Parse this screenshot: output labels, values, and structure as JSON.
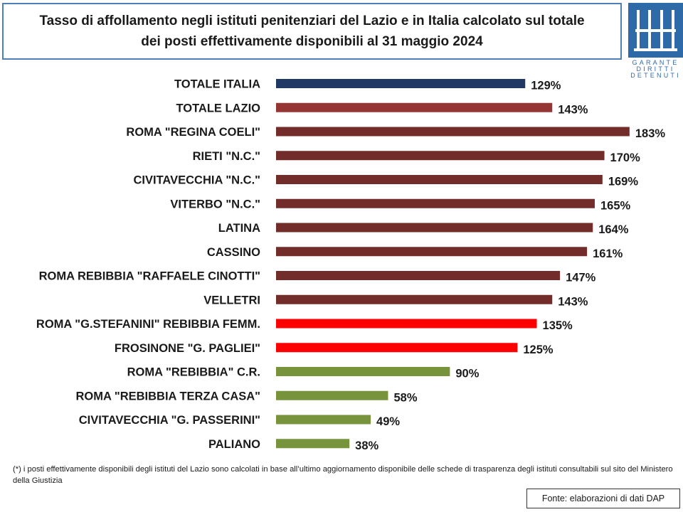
{
  "title": {
    "line1": "Tasso di affollamento negli istituti penitenziari del Lazio e in Italia calcolato sul totale",
    "line2": "dei posti effettivamente disponibili al 31 maggio 2024"
  },
  "logo": {
    "line1": "GARANTE",
    "line2": "DIRITTI",
    "line3": "DETENUTI",
    "color": "#2f6aa8"
  },
  "colors": {
    "italia": "#1f3864",
    "lazio": "#963634",
    "over_150": "#722d2b",
    "mid": "#ff0000",
    "under_100": "#77933c"
  },
  "chart_data": {
    "type": "bar",
    "orientation": "horizontal",
    "value_suffix": "%",
    "xlim": [
      0,
      190
    ],
    "grid": false,
    "legend": "none",
    "categories": [
      "TOTALE ITALIA",
      "TOTALE LAZIO",
      "ROMA \"REGINA COELI\"",
      "RIETI \"N.C.\"",
      "CIVITAVECCHIA \"N.C.\"",
      "VITERBO \"N.C.\"",
      "LATINA",
      "CASSINO",
      "ROMA REBIBBIA \"RAFFAELE CINOTTI\"",
      "VELLETRI",
      "ROMA \"G.STEFANINI\" REBIBBIA FEMM.",
      "FROSINONE \"G. PAGLIEI\"",
      "ROMA \"REBIBBIA\" C.R.",
      "ROMA \"REBIBBIA TERZA CASA\"",
      "CIVITAVECCHIA \"G. PASSERINI\"",
      "PALIANO"
    ],
    "values": [
      129,
      143,
      183,
      170,
      169,
      165,
      164,
      161,
      147,
      143,
      135,
      125,
      90,
      58,
      49,
      38
    ],
    "bar_colors": [
      "#1f3864",
      "#963634",
      "#722d2b",
      "#722d2b",
      "#722d2b",
      "#722d2b",
      "#722d2b",
      "#722d2b",
      "#722d2b",
      "#722d2b",
      "#ff0000",
      "#ff0000",
      "#77933c",
      "#77933c",
      "#77933c",
      "#77933c"
    ]
  },
  "footnote": "(*) i posti effettivamente disponibili  degli istituti del Lazio sono calcolati in base all’ultimo aggiornamento disponibile  delle schede di trasparenza degli istituti consultabili sul sito del Ministero della Giustizia",
  "source": "Fonte: elaborazioni di dati DAP"
}
